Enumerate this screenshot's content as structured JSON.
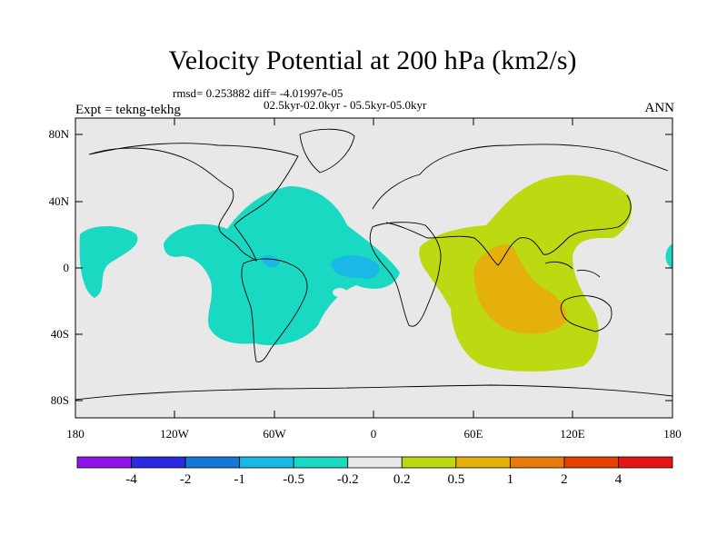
{
  "title": "Velocity Potential at 200 hPa (km2/s)",
  "stats_line": "rmsd= 0.253882 diff= -4.01997e-05",
  "period_line": "02.5kyr-02.0kyr - 05.5kyr-05.0kyr",
  "expt_label": "Expt = tekng-tekhg",
  "season_label": "ANN",
  "y_ticks": [
    "80N",
    "40N",
    "0",
    "40S",
    "80S"
  ],
  "x_ticks": [
    "180",
    "120W",
    "60W",
    "0",
    "60E",
    "120E",
    "180"
  ],
  "colorbar": {
    "colors": [
      "#8f14e8",
      "#2a2ae0",
      "#1677db",
      "#19b8e6",
      "#1ad9c2",
      "#e8e8e8",
      "#bcd911",
      "#e6b00c",
      "#e67b0c",
      "#e64000",
      "#e61414"
    ],
    "labels": [
      "-4",
      "-2",
      "-1",
      "-0.5",
      "-0.2",
      "0.2",
      "0.5",
      "1",
      "2",
      "4"
    ]
  },
  "palette": {
    "land_ocean_bg": "#e8e8e8",
    "neg_weak": "#1ad9c2",
    "neg_mod": "#19b8e6",
    "pos_weak": "#bcd911",
    "pos_mod": "#e6b00c"
  }
}
